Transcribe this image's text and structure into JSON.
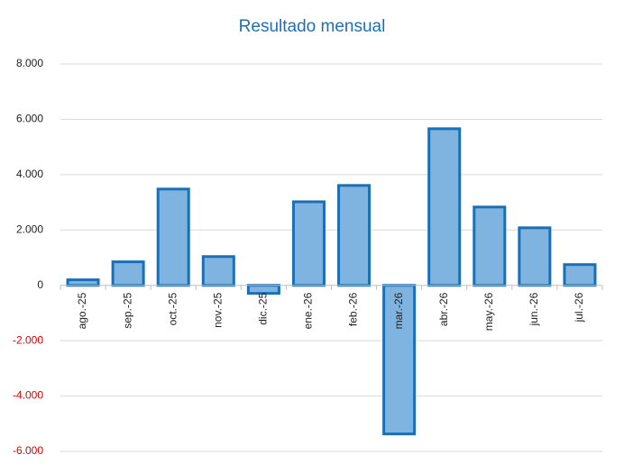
{
  "chart_data": {
    "type": "bar",
    "title": "Resultado mensual",
    "categories": [
      "ago.-25",
      "sep.-25",
      "oct.-25",
      "nov.-25",
      "dic.-25",
      "ene.-26",
      "feb.-26",
      "mar.-26",
      "abr.-26",
      "may.-26",
      "jun.-26",
      "jul.-26"
    ],
    "values": [
      200,
      850,
      3480,
      1040,
      -290,
      3020,
      3610,
      -5370,
      5660,
      2830,
      2080,
      750
    ],
    "color": "#7fb4e0",
    "edge_color": "#1a6fb5",
    "negative_tick_color": "#e00000",
    "ylim": [
      -6000,
      8000
    ],
    "yticks": [
      {
        "value": -6000,
        "label": "-6.000"
      },
      {
        "value": -4000,
        "label": "-4.000"
      },
      {
        "value": -2000,
        "label": "-2.000"
      },
      0,
      {
        "value": 2000,
        "label": "2.000"
      },
      {
        "value": 4000,
        "label": "4.000"
      },
      {
        "value": 6000,
        "label": "6.000"
      },
      {
        "value": 8000,
        "label": "8.000"
      }
    ],
    "grid": true
  }
}
